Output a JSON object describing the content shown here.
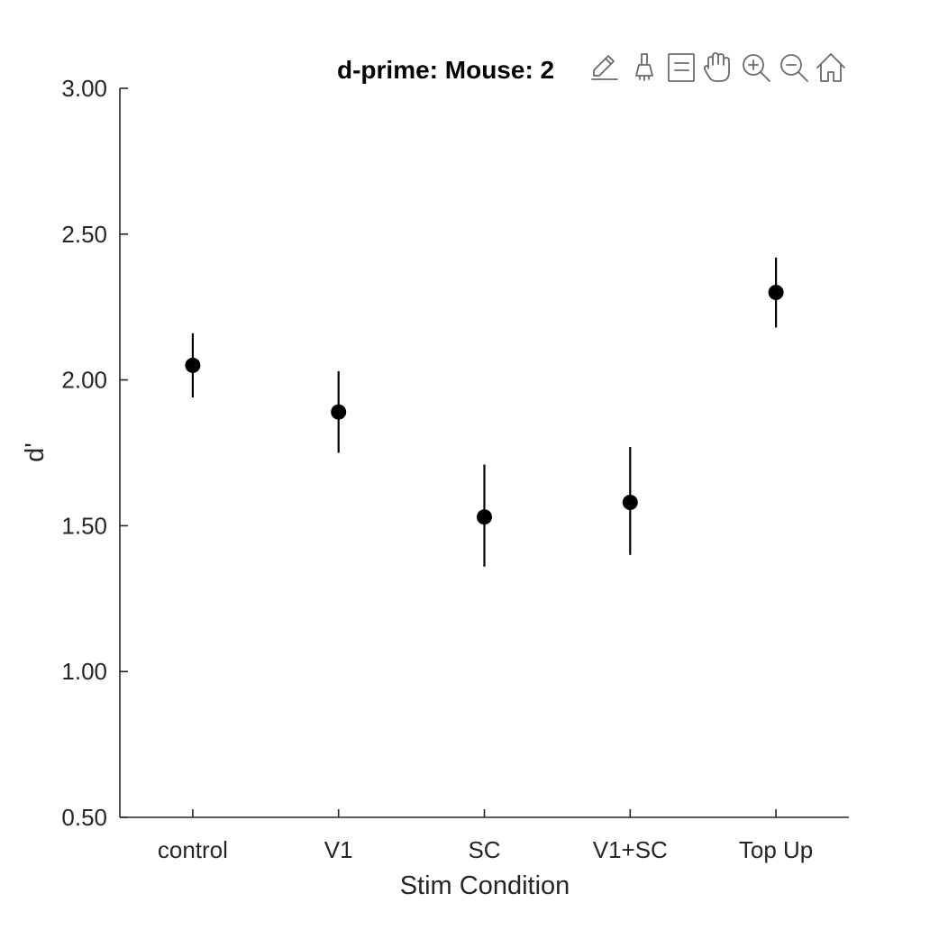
{
  "chart_data": {
    "type": "scatter",
    "title": "d-prime: Mouse: 2",
    "xlabel": "Stim Condition",
    "ylabel": "d'",
    "categories": [
      "control",
      "V1",
      "SC",
      "V1+SC",
      "Top Up"
    ],
    "series": [
      {
        "values": [
          2.05,
          1.89,
          1.53,
          1.58,
          2.3
        ],
        "err_low": [
          1.94,
          1.75,
          1.36,
          1.4,
          2.18
        ],
        "err_high": [
          2.16,
          2.03,
          1.71,
          1.77,
          2.42
        ]
      }
    ],
    "ylim": [
      0.5,
      3.0
    ],
    "yticks": [
      "0.50",
      "1.00",
      "1.50",
      "2.00",
      "2.50",
      "3.00"
    ],
    "grid": false,
    "marker_color": "#000000",
    "error_bar_color": "#000000"
  },
  "toolbar": {
    "icons": [
      "edit-pen-icon",
      "brush-icon",
      "legend-icon",
      "pan-hand-icon",
      "zoom-in-icon",
      "zoom-out-icon",
      "home-icon"
    ]
  }
}
